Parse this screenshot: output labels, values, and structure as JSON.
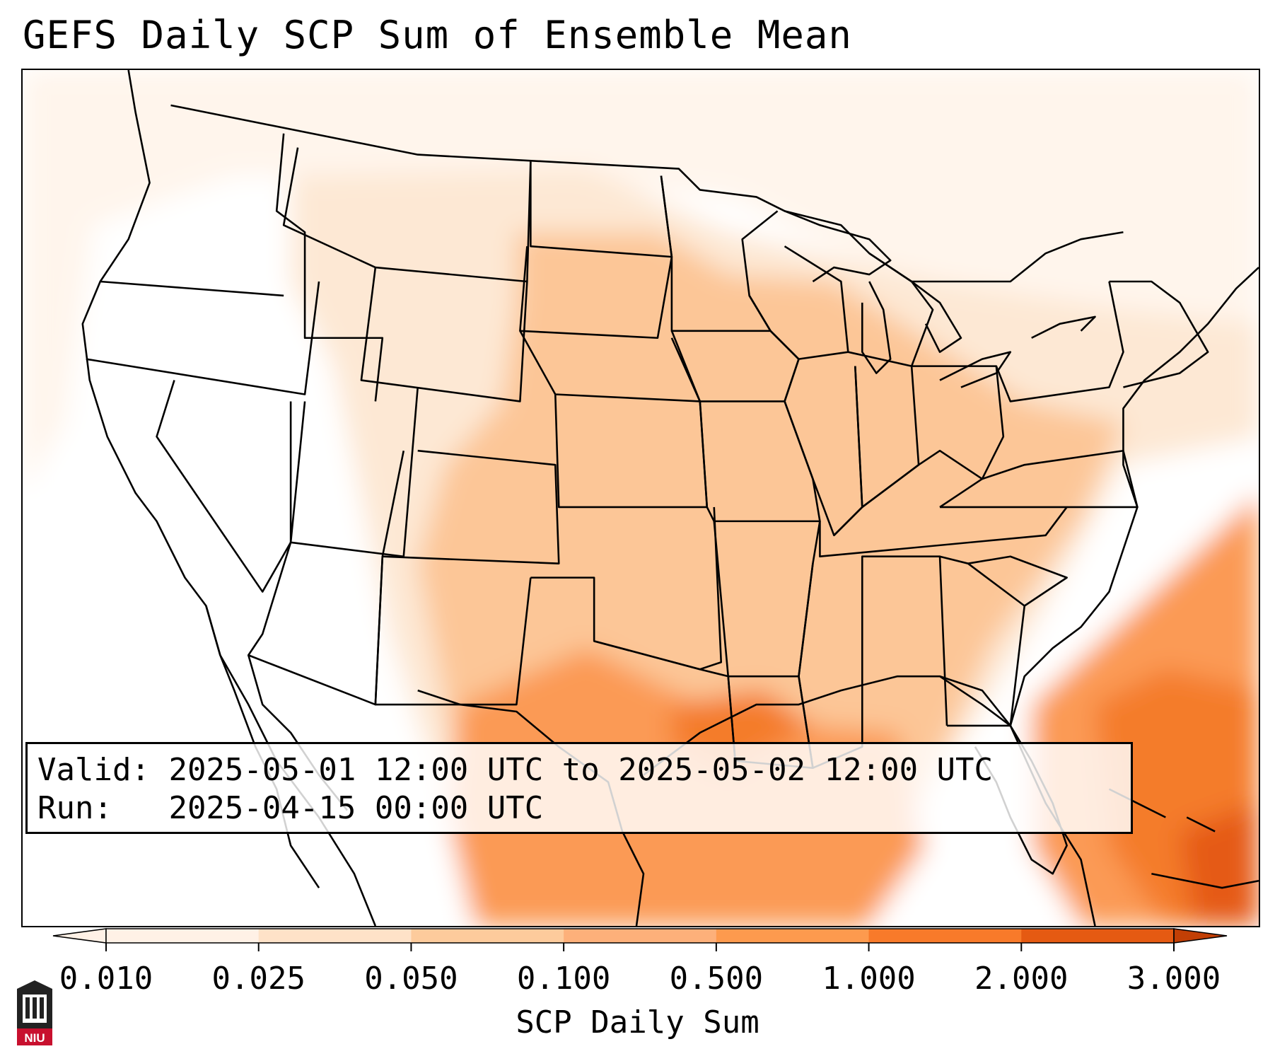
{
  "title": "GEFS Daily SCP Sum of Ensemble Mean",
  "info": {
    "valid_label": "Valid:",
    "valid_value": "2025-05-01 12:00 UTC to 2025-05-02 12:00 UTC",
    "run_label": "Run:",
    "run_value": "2025-04-15 00:00 UTC"
  },
  "colorbar": {
    "label": "SCP Daily Sum",
    "ticks": [
      "0.010",
      "0.025",
      "0.050",
      "0.100",
      "0.500",
      "1.000",
      "2.000",
      "3.000"
    ],
    "colors": [
      "#fff1e6",
      "#fee2c8",
      "#fdcb9c",
      "#fdb07a",
      "#fd9a4e",
      "#f87a2a",
      "#e55a12",
      "#c23f05"
    ],
    "extend": "both"
  },
  "logo": {
    "text": "NIU"
  },
  "colors": {
    "state_lines": "#000000",
    "frame": "#000000"
  }
}
